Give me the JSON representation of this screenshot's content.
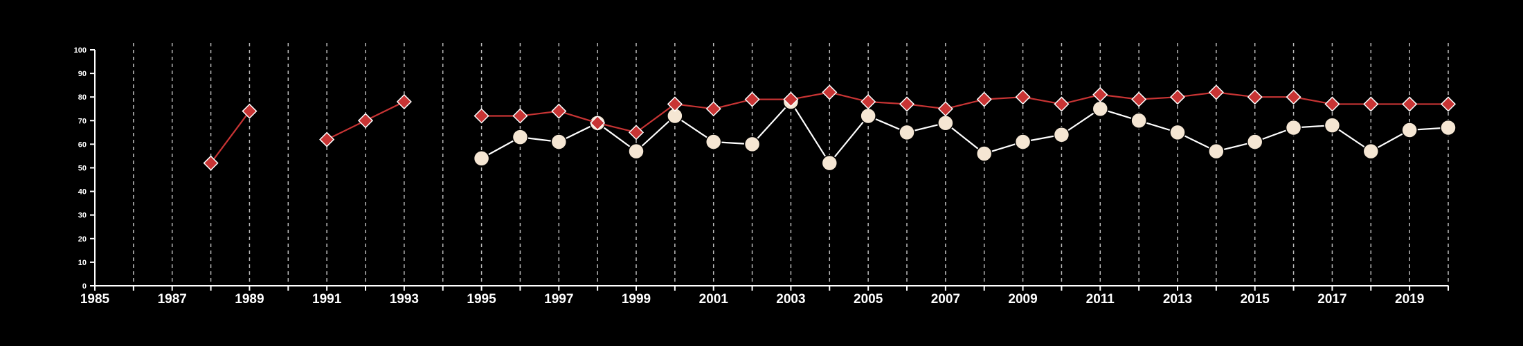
{
  "chart_data": {
    "type": "line",
    "title": "",
    "xlabel": "",
    "ylabel": "",
    "xlim": [
      1985,
      2020
    ],
    "ylim": [
      0,
      100
    ],
    "x_ticks": [
      1985,
      1986,
      1987,
      1988,
      1989,
      1990,
      1991,
      1992,
      1993,
      1994,
      1995,
      1996,
      1997,
      1998,
      1999,
      2000,
      2001,
      2002,
      2003,
      2004,
      2005,
      2006,
      2007,
      2008,
      2009,
      2010,
      2011,
      2012,
      2013,
      2014,
      2015,
      2016,
      2017,
      2018,
      2019,
      2020
    ],
    "x_tick_labels": [
      "1985",
      "",
      "1987",
      "",
      "1989",
      "",
      "1991",
      "",
      "1993",
      "",
      "1995",
      "",
      "1997",
      "",
      "1999",
      "",
      "2001",
      "",
      "2003",
      "",
      "2005",
      "",
      "2007",
      "",
      "2009",
      "",
      "2011",
      "",
      "2013",
      "",
      "2015",
      "",
      "2017",
      "",
      "2019",
      ""
    ],
    "y_ticks": [
      0,
      10,
      20,
      30,
      40,
      50,
      60,
      70,
      80,
      90,
      100
    ],
    "y_tick_labels": [
      "0",
      "10",
      "20",
      "30",
      "40",
      "50",
      "60",
      "70",
      "80",
      "90",
      "100"
    ],
    "grid": "vertical dashed",
    "background": "#000000",
    "axis_color": "#ffffff",
    "grid_color": "#bbbbbb",
    "series": [
      {
        "marker": "circle",
        "color": "#ffffff",
        "marker_fill": "#f5e6d3",
        "x": [
          1995,
          1996,
          1997,
          1998,
          1999,
          2000,
          2001,
          2002,
          2003,
          2004,
          2005,
          2006,
          2007,
          2008,
          2009,
          2010,
          2011,
          2012,
          2013,
          2014,
          2015,
          2016,
          2017,
          2018,
          2019,
          2020
        ],
        "values": [
          54,
          63,
          61,
          69,
          57,
          72,
          61,
          60,
          78,
          52,
          72,
          65,
          69,
          56,
          61,
          64,
          75,
          70,
          65,
          57,
          61,
          67,
          68,
          57,
          66,
          67
        ]
      },
      {
        "marker": "diamond",
        "color": "#c83434",
        "x": [
          1988,
          1989,
          1990,
          1991,
          1992,
          1993,
          1994,
          1995,
          1996,
          1997,
          1998,
          1999,
          2000,
          2001,
          2002,
          2003,
          2004,
          2005,
          2006,
          2007,
          2008,
          2009,
          2010,
          2011,
          2012,
          2013,
          2014,
          2015,
          2016,
          2017,
          2018,
          2019,
          2020
        ],
        "values": [
          52,
          74,
          null,
          62,
          70,
          78,
          null,
          72,
          72,
          74,
          69,
          65,
          77,
          75,
          79,
          79,
          82,
          78,
          77,
          75,
          79,
          80,
          77,
          81,
          79,
          80,
          82,
          80,
          80,
          77,
          77,
          77,
          77
        ]
      }
    ]
  }
}
